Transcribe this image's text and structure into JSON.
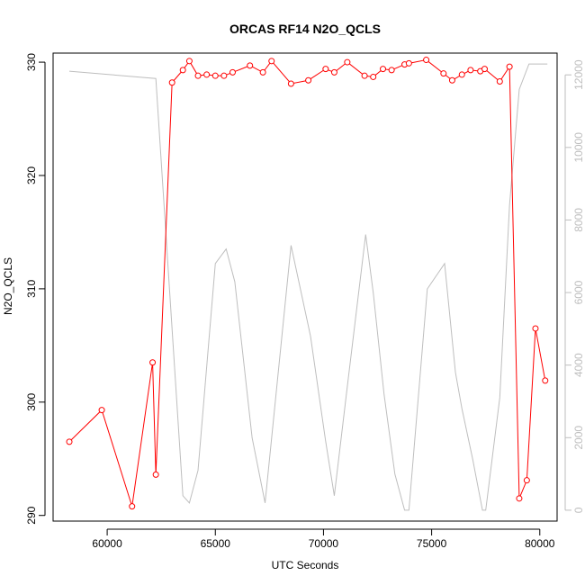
{
  "chart_data": {
    "type": "line",
    "title": "ORCAS RF14 N2O_QCLS",
    "xlabel": "UTC Seconds",
    "ylabel": "N2O_QCLS",
    "y2label": "",
    "xlim": [
      57500,
      80800
    ],
    "ylim": [
      289.5,
      330.8
    ],
    "y2lim": [
      -300,
      12600
    ],
    "x_ticks": [
      60000,
      65000,
      70000,
      75000,
      80000
    ],
    "y_ticks": [
      290,
      300,
      310,
      320,
      330
    ],
    "y2_ticks": [
      0,
      2000,
      4000,
      6000,
      8000,
      10000,
      12000
    ],
    "grid": false,
    "legend": "none",
    "colors": {
      "primary": "#ff0000",
      "secondary": "#bebebe",
      "axis": "#000000"
    },
    "series": [
      {
        "axis": "left",
        "style": "line-with-open-circles",
        "x": [
          58250,
          59750,
          61150,
          62100,
          62250,
          63000,
          63500,
          63800,
          64200,
          64600,
          65000,
          65400,
          65800,
          66600,
          67200,
          67600,
          68500,
          69300,
          70100,
          70500,
          71100,
          71900,
          72300,
          72750,
          73150,
          73750,
          73950,
          74750,
          75550,
          75950,
          76400,
          76800,
          77250,
          77450,
          78150,
          78600,
          79050,
          79400,
          79800,
          80250
        ],
        "y": [
          296.5,
          299.3,
          290.8,
          303.5,
          293.6,
          328.2,
          329.3,
          330.1,
          328.8,
          328.9,
          328.8,
          328.8,
          329.1,
          329.7,
          329.1,
          330.1,
          328.1,
          328.4,
          329.4,
          329.1,
          330.0,
          328.8,
          328.7,
          329.4,
          329.3,
          329.8,
          329.9,
          330.2,
          329.0,
          328.4,
          328.9,
          329.3,
          329.2,
          329.4,
          328.3,
          329.6,
          291.5,
          293.1,
          306.5,
          301.9
        ]
      },
      {
        "axis": "right",
        "style": "line",
        "x": [
          58250,
          62250,
          63500,
          63800,
          64200,
          65000,
          65500,
          65900,
          66700,
          67300,
          68500,
          69400,
          70100,
          70500,
          71100,
          71950,
          72300,
          72800,
          73300,
          73750,
          73950,
          74800,
          75600,
          76100,
          76400,
          76900,
          77350,
          77500,
          78150,
          78600,
          79050,
          79500,
          80350
        ],
        "y": [
          12100,
          11900,
          400,
          200,
          1100,
          6800,
          7200,
          6300,
          2000,
          200,
          7300,
          4800,
          1900,
          400,
          3400,
          7600,
          6000,
          3200,
          1000,
          0,
          0,
          6100,
          6800,
          3800,
          2800,
          1400,
          0,
          0,
          3100,
          8400,
          11600,
          12300,
          12300
        ]
      }
    ]
  }
}
